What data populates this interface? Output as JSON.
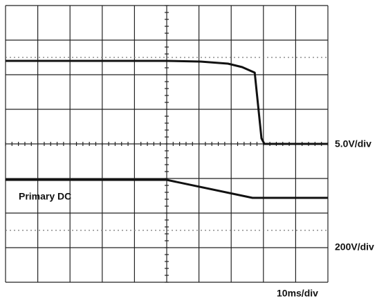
{
  "chart_data": {
    "type": "line",
    "x_label": "10ms/div",
    "y_labels": [
      "5.0V/div",
      "200V/div"
    ],
    "xlim": [
      0,
      10
    ],
    "ylim": [
      0,
      8
    ],
    "series": [
      {
        "color": "#111111",
        "x": [
          0,
          5.0,
          6.05,
          6.9,
          7.34,
          7.73,
          7.94,
          8.03,
          10
        ],
        "values": [
          6.4,
          6.4,
          6.38,
          6.32,
          6.22,
          6.06,
          4.16,
          4.0,
          4.0
        ]
      },
      {
        "name": "Primary DC",
        "color": "#111111",
        "x": [
          0,
          5.0,
          7.66,
          10
        ],
        "values": [
          2.96,
          2.96,
          2.44,
          2.44
        ]
      }
    ]
  }
}
